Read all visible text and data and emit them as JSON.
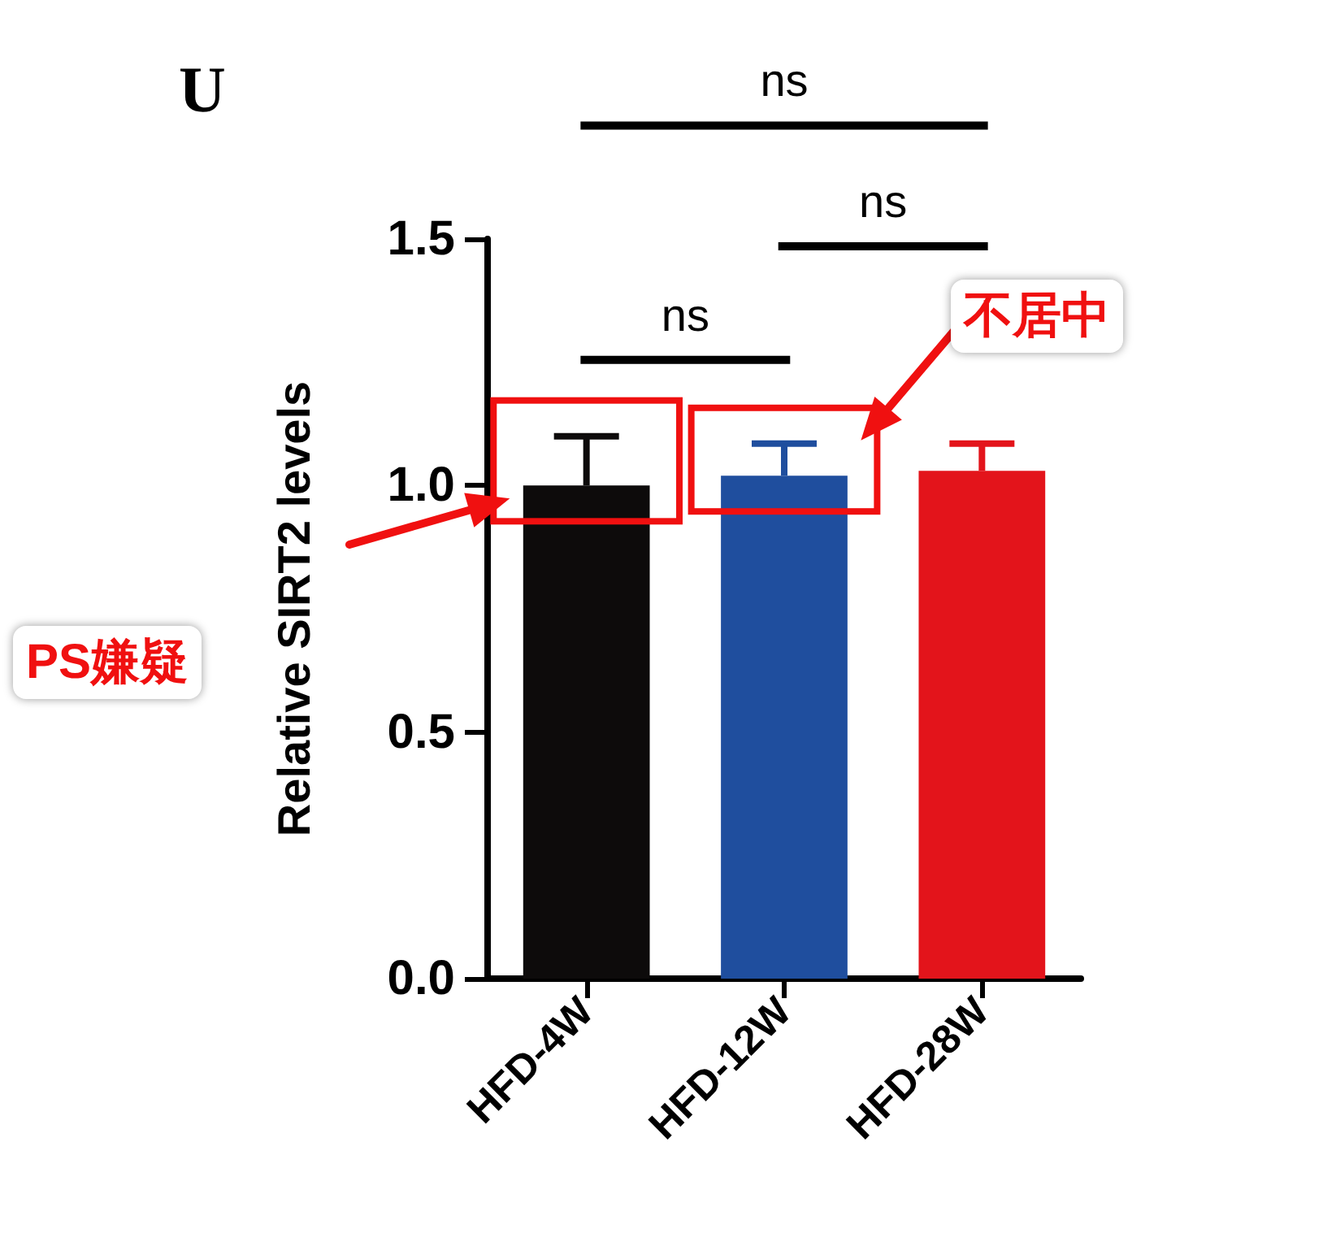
{
  "chart_data": {
    "type": "bar",
    "title": "U",
    "ylabel": "Relative SIRT2 levels",
    "categories": [
      "HFD-4W",
      "HFD-12W",
      "HFD-28W"
    ],
    "values": [
      1.0,
      1.02,
      1.03
    ],
    "colors": [
      "#0d0b0b",
      "#1f4e9e",
      "#e3141b"
    ],
    "errors": [
      [
        1.0,
        1.1
      ],
      [
        1.02,
        1.085
      ],
      [
        1.03,
        1.085
      ]
    ],
    "ylim": [
      0,
      1.5
    ],
    "yticks": [
      {
        "value": 0,
        "label": "0.0"
      },
      {
        "value": 0.5,
        "label": "0.5"
      },
      {
        "value": 1,
        "label": "1.0"
      },
      {
        "value": 1.5,
        "label": "1.5"
      }
    ],
    "grid": false,
    "annotations": [
      "ns",
      "ns",
      "ns",
      "PS嫌疑",
      "不居中"
    ]
  }
}
